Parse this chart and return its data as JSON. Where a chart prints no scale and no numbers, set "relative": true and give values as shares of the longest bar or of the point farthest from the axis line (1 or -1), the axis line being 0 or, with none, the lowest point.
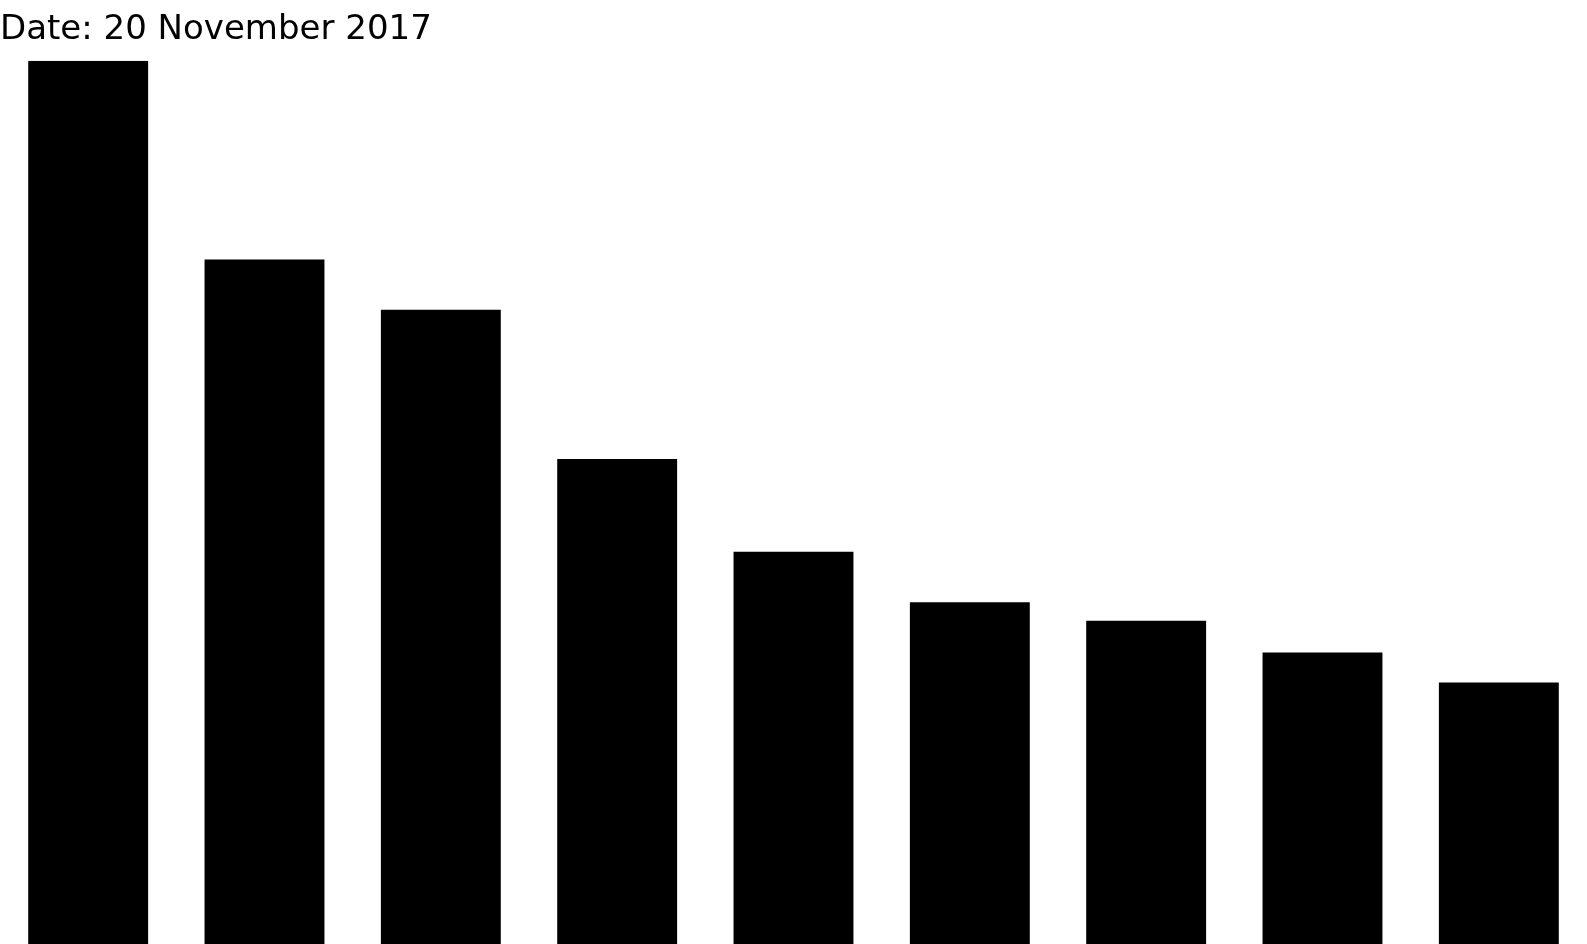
{
  "chart_data": {
    "type": "bar",
    "title": "Date: 20 November 2017",
    "relative": true,
    "categories": [
      null,
      null,
      null,
      null,
      null,
      null,
      null,
      null,
      null
    ],
    "series": [
      {
        "color": "#000000",
        "values": [
          1,
          0.775,
          0.718,
          0.549,
          0.444,
          0.387,
          0.366,
          0.33,
          0.296
        ]
      }
    ],
    "legend": false
  }
}
